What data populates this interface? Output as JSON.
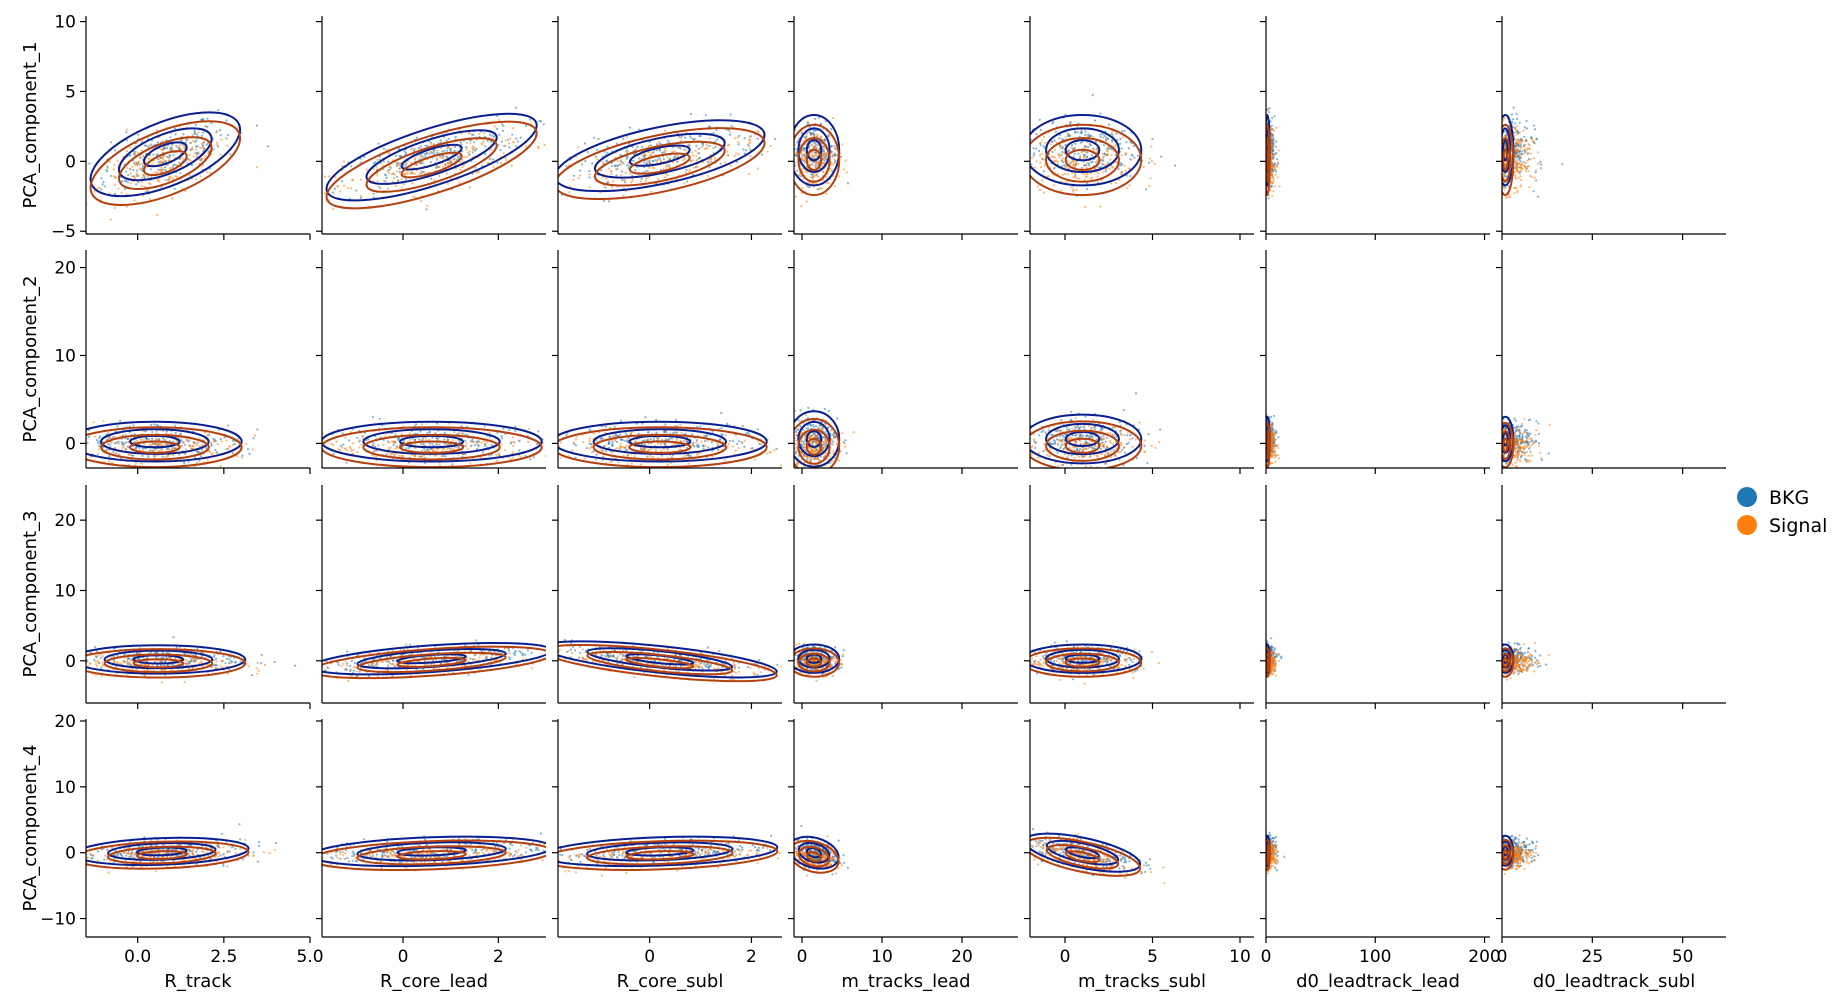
{
  "chart_data": {
    "type": "scatter",
    "title": "",
    "columns": [
      {
        "xlabel": "R_track",
        "xlim": [
          -1.5,
          5.0
        ],
        "ticks": [
          0.0,
          2.5,
          5.0
        ],
        "tick_labels": [
          "0.0",
          "2.5",
          "5.0"
        ]
      },
      {
        "xlabel": "R_core_lead",
        "xlim": [
          -1.7,
          3.0
        ],
        "ticks": [
          0,
          2
        ],
        "tick_labels": [
          "0",
          "2"
        ]
      },
      {
        "xlabel": "R_core_subl",
        "xlim": [
          -1.8,
          2.6
        ],
        "ticks": [
          0,
          2
        ],
        "tick_labels": [
          "0",
          "2"
        ]
      },
      {
        "xlabel": "m_tracks_lead",
        "xlim": [
          -1.0,
          27.0
        ],
        "ticks": [
          0,
          10,
          20
        ],
        "tick_labels": [
          "0",
          "10",
          "20"
        ]
      },
      {
        "xlabel": "m_tracks_subl",
        "xlim": [
          -2.0,
          10.8
        ],
        "ticks": [
          0,
          5,
          10
        ],
        "tick_labels": [
          "0",
          "5",
          "10"
        ]
      },
      {
        "xlabel": "d0_leadtrack_lead",
        "xlim": [
          0,
          205
        ],
        "ticks": [
          0,
          100,
          200
        ],
        "tick_labels": [
          "0",
          "100",
          "200"
        ]
      },
      {
        "xlabel": "d0_leadtrack_subl",
        "xlim": [
          0,
          62
        ],
        "ticks": [
          0,
          25,
          50
        ],
        "tick_labels": [
          "0",
          "25",
          "50"
        ]
      }
    ],
    "rows": [
      {
        "ylabel": "PCA_component_1",
        "ylim": [
          -5.2,
          10.4
        ],
        "ticks": [
          -5,
          0,
          5,
          10
        ],
        "tick_labels": [
          "−5",
          "0",
          "5",
          "10"
        ]
      },
      {
        "ylabel": "PCA_component_2",
        "ylim": [
          -2.8,
          22.0
        ],
        "ticks": [
          0,
          10,
          20
        ],
        "tick_labels": [
          "0",
          "10",
          "20"
        ]
      },
      {
        "ylabel": "PCA_component_3",
        "ylim": [
          -6.0,
          25.0
        ],
        "ticks": [
          0,
          10,
          20
        ],
        "tick_labels": [
          "0",
          "10",
          "20"
        ]
      },
      {
        "ylabel": "PCA_component_4",
        "ylim": [
          -12.8,
          20.3
        ],
        "ticks": [
          -10,
          0,
          10,
          20
        ],
        "tick_labels": [
          "−10",
          "0",
          "10",
          "20"
        ]
      }
    ],
    "legend": {
      "position": "right",
      "entries": [
        {
          "name": "BKG",
          "color": "#1f77b4"
        },
        {
          "name": "Signal",
          "color": "#ff7f0e"
        }
      ]
    },
    "contour_colors": {
      "BKG": "#0a1f8f",
      "Signal": "#b5410f"
    },
    "grid": false,
    "note": "pairwise scatter + KDE contour grid of PCA components vs jet features"
  }
}
